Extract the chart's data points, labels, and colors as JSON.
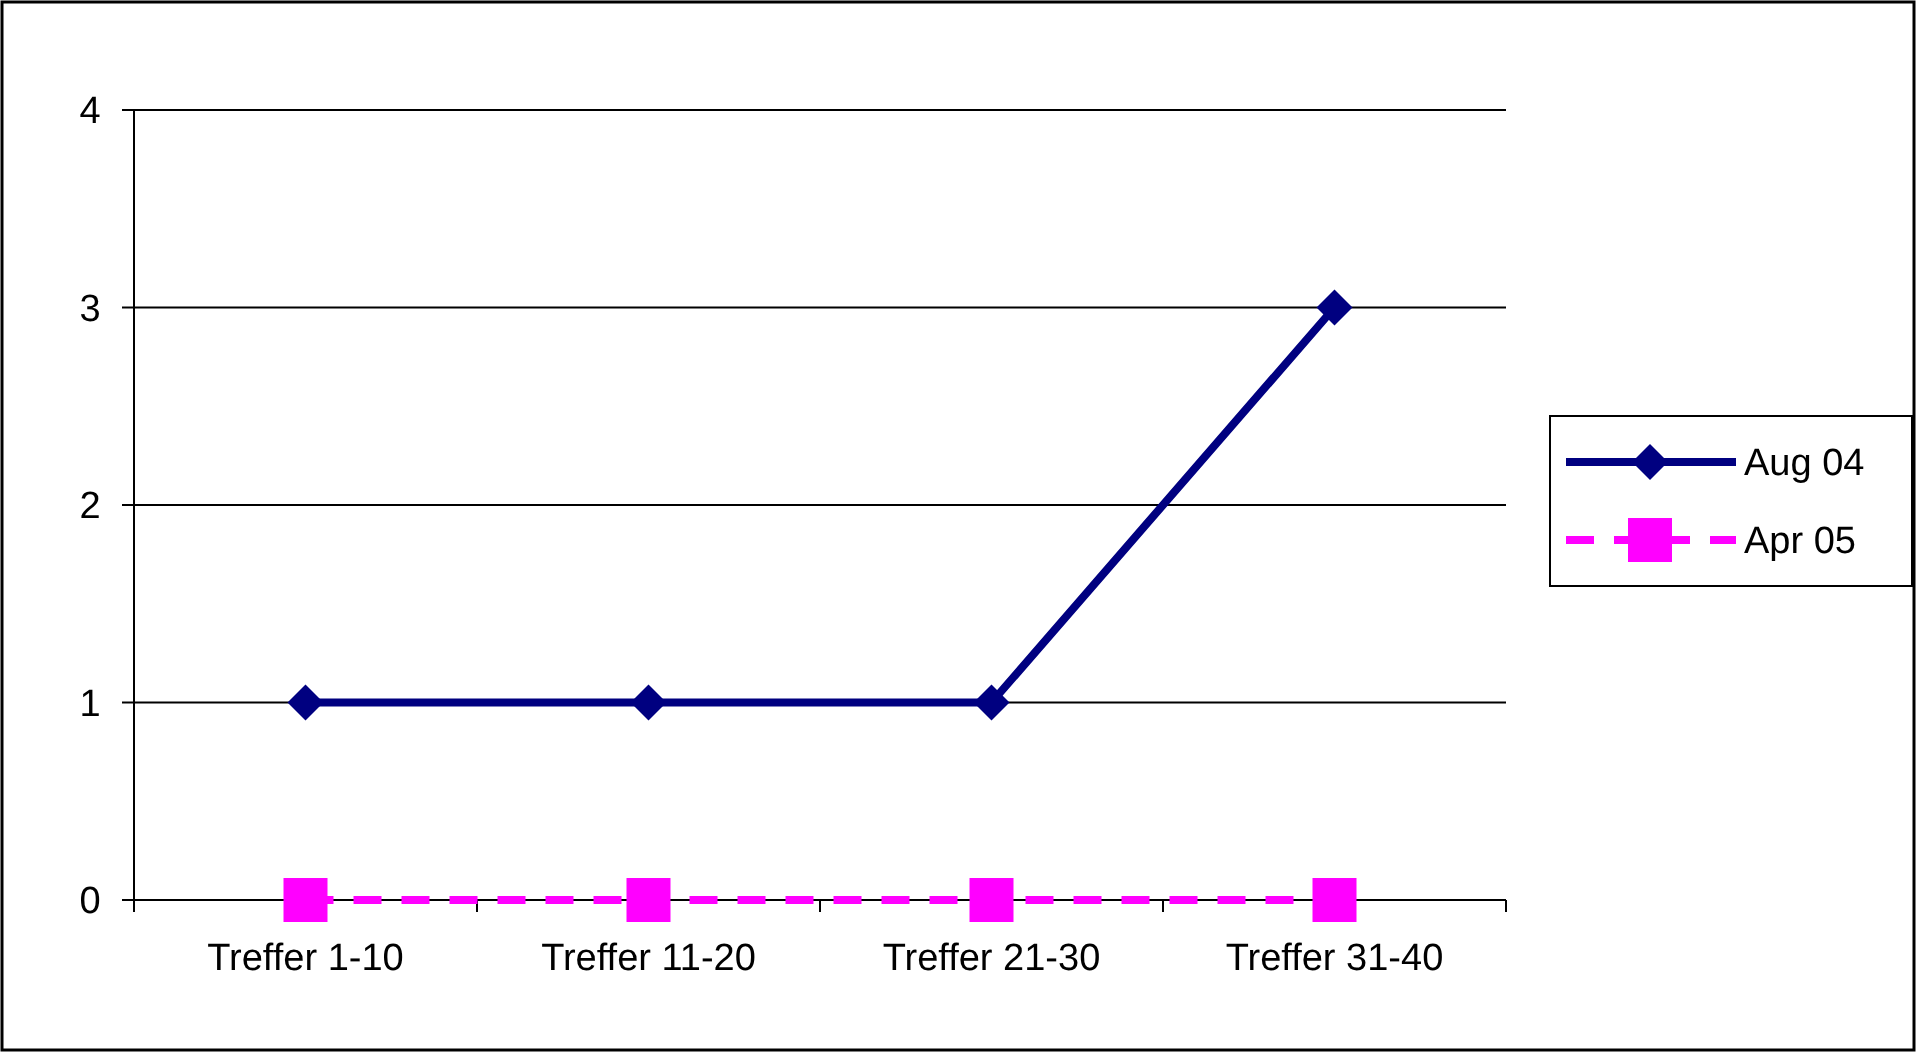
{
  "chart_data": {
    "type": "line",
    "categories": [
      "Treffer 1-10",
      "Treffer 11-20",
      "Treffer 21-30",
      "Treffer 31-40"
    ],
    "series": [
      {
        "name": "Aug 04",
        "color": "#000080",
        "values": [
          1,
          1,
          1,
          3
        ],
        "marker": "diamond",
        "line_style": "solid"
      },
      {
        "name": "Apr 05",
        "color": "#ff00ff",
        "values": [
          0,
          0,
          0,
          0
        ],
        "marker": "square",
        "line_style": "dashed"
      }
    ],
    "ylim": [
      0,
      4
    ],
    "yticks": [
      0,
      1,
      2,
      3,
      4
    ],
    "grid": "y",
    "legend": "right"
  }
}
